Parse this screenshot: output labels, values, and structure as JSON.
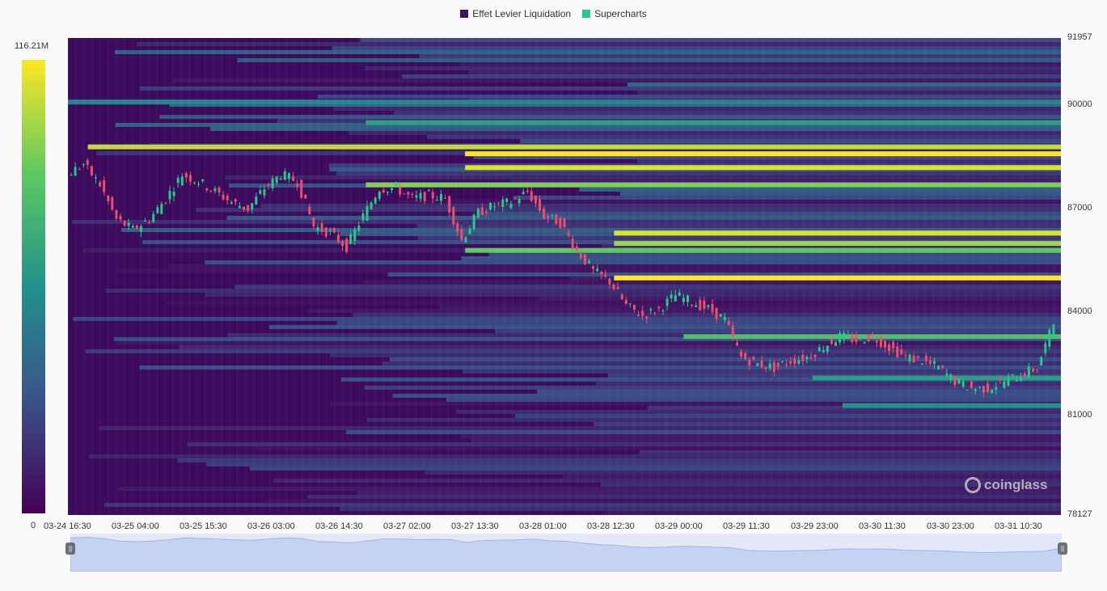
{
  "legend": {
    "items": [
      {
        "label": "Effet Levier Liquidation",
        "color": "#3b1366"
      },
      {
        "label": "Supercharts",
        "color": "#26c98a"
      }
    ]
  },
  "color_scale": {
    "max_label": "116.21M",
    "min_label": "0"
  },
  "watermark": {
    "text": "coinglass"
  },
  "chart_data": {
    "type": "heatmap",
    "y_axis": {
      "min": 78127,
      "max": 91957,
      "ticks": [
        "91957",
        "90000",
        "87000",
        "84000",
        "81000",
        "78127"
      ]
    },
    "x_axis": {
      "ticks": [
        "03-24 16:30",
        "03-25 04:00",
        "03-25 15:30",
        "03-26 03:00",
        "03-26 14:30",
        "03-27 02:00",
        "03-27 13:30",
        "03-28 01:00",
        "03-28 12:30",
        "03-29 00:00",
        "03-29 11:30",
        "03-29 23:00",
        "03-30 11:30",
        "03-30 23:00",
        "03-31 10:30"
      ]
    },
    "price_path": [
      [
        0,
        88000
      ],
      [
        2,
        88300
      ],
      [
        4,
        87700
      ],
      [
        6,
        86700
      ],
      [
        8,
        86400
      ],
      [
        10,
        86700
      ],
      [
        12,
        87300
      ],
      [
        14,
        88000
      ],
      [
        16,
        87800
      ],
      [
        18,
        87500
      ],
      [
        20,
        87200
      ],
      [
        22,
        87000
      ],
      [
        24,
        87600
      ],
      [
        26,
        88000
      ],
      [
        28,
        87800
      ],
      [
        30,
        86500
      ],
      [
        32,
        86300
      ],
      [
        34,
        85900
      ],
      [
        36,
        86800
      ],
      [
        38,
        87600
      ],
      [
        40,
        87600
      ],
      [
        42,
        87300
      ],
      [
        44,
        87400
      ],
      [
        46,
        87300
      ],
      [
        48,
        86100
      ],
      [
        50,
        86900
      ],
      [
        52,
        87100
      ],
      [
        54,
        87200
      ],
      [
        56,
        87500
      ],
      [
        58,
        86800
      ],
      [
        60,
        86600
      ],
      [
        62,
        85800
      ],
      [
        64,
        85200
      ],
      [
        66,
        84900
      ],
      [
        68,
        84200
      ],
      [
        70,
        83900
      ],
      [
        72,
        84100
      ],
      [
        74,
        84500
      ],
      [
        76,
        84300
      ],
      [
        78,
        84100
      ],
      [
        80,
        83800
      ],
      [
        82,
        82700
      ],
      [
        84,
        82500
      ],
      [
        86,
        82400
      ],
      [
        88,
        82600
      ],
      [
        90,
        82700
      ],
      [
        92,
        83000
      ],
      [
        94,
        83300
      ],
      [
        96,
        83200
      ],
      [
        98,
        83300
      ],
      [
        100,
        83000
      ],
      [
        102,
        82700
      ],
      [
        104,
        82600
      ],
      [
        106,
        82400
      ],
      [
        108,
        82000
      ],
      [
        110,
        81800
      ],
      [
        112,
        81800
      ],
      [
        114,
        82000
      ],
      [
        116,
        82200
      ],
      [
        118,
        82400
      ],
      [
        120,
        83700
      ]
    ],
    "liquidation_bands": [
      {
        "price": 88800,
        "start": 0.02,
        "intensity": 0.9
      },
      {
        "price": 88600,
        "start": 0.4,
        "intensity": 1.0
      },
      {
        "price": 88200,
        "start": 0.4,
        "intensity": 0.95
      },
      {
        "price": 87700,
        "start": 0.3,
        "intensity": 0.8
      },
      {
        "price": 86300,
        "start": 0.55,
        "intensity": 0.95
      },
      {
        "price": 86000,
        "start": 0.55,
        "intensity": 0.85
      },
      {
        "price": 85000,
        "start": 0.55,
        "intensity": 1.0
      },
      {
        "price": 85800,
        "start": 0.4,
        "intensity": 0.75
      },
      {
        "price": 90100,
        "start": 0.0,
        "intensity": 0.45
      },
      {
        "price": 89500,
        "start": 0.3,
        "intensity": 0.55
      },
      {
        "price": 83300,
        "start": 0.62,
        "intensity": 0.7
      },
      {
        "price": 82100,
        "start": 0.75,
        "intensity": 0.55
      },
      {
        "price": 81300,
        "start": 0.78,
        "intensity": 0.5
      }
    ],
    "heat_scale": {
      "min": 0,
      "max": 116.21,
      "unit": "M"
    }
  }
}
